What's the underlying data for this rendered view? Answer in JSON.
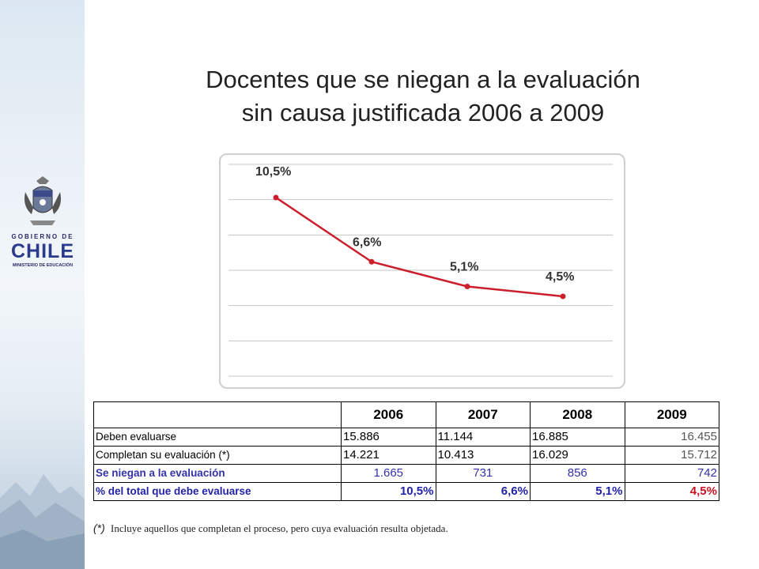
{
  "branding": {
    "gov_line": "GOBIERNO DE",
    "country": "CHILE",
    "ministry": "MINISTERIO DE EDUCACIÓN"
  },
  "title": {
    "line1": "Docentes que se niegan a la evaluación",
    "line2": "sin causa justificada 2006 a 2009"
  },
  "chart_data": {
    "type": "line",
    "x": [
      "2006",
      "2007",
      "2008",
      "2009"
    ],
    "series": [
      {
        "values": [
          10.5,
          6.6,
          5.1,
          4.5
        ],
        "labels": [
          "10,5%",
          "6,6%",
          "5,1%",
          "4,5%"
        ]
      }
    ],
    "ylim": [
      0,
      12
    ],
    "grid": true,
    "line_color": "#cc1f2d"
  },
  "table": {
    "headers": [
      "",
      "2006",
      "2007",
      "2008",
      "2009"
    ],
    "rows": [
      {
        "label": "Deben evaluarse",
        "values": [
          "15.886",
          "11.144",
          "16.885",
          "16.455"
        ]
      },
      {
        "label": "Completan su evaluación (*)",
        "values": [
          "14.221",
          "10.413",
          "16.029",
          "15.712"
        ]
      },
      {
        "label": "Se niegan a la evaluación",
        "values": [
          "1.665",
          "731",
          "856",
          "742"
        ]
      },
      {
        "label": "% del total que debe evaluarse",
        "values": [
          "10,5%",
          "6,6%",
          "5,1%",
          "4,5%"
        ]
      }
    ]
  },
  "footnote": {
    "mark": "(*)",
    "text": "Incluye aquellos que completan el proceso, pero cuya evaluación resulta objetada."
  }
}
